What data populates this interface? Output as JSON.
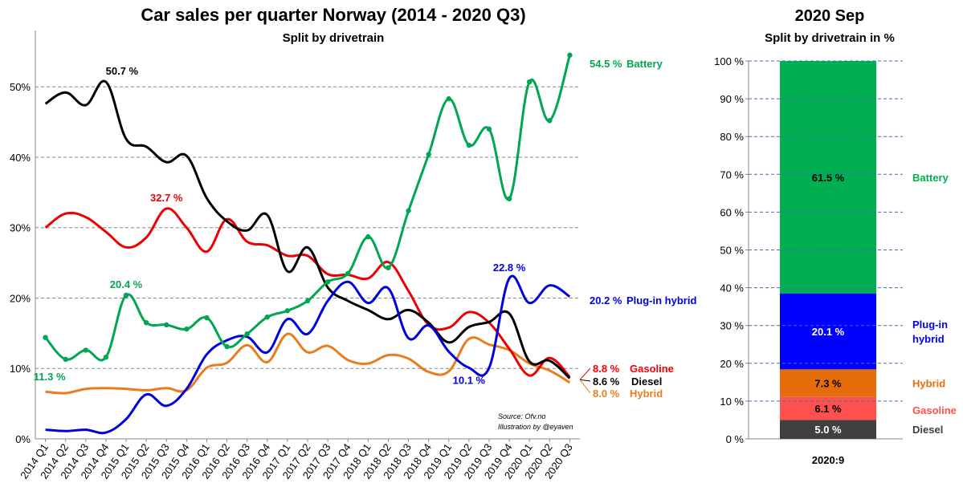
{
  "chart_data": [
    {
      "type": "line",
      "title": "Car sales per quarter Norway (2014 - 2020 Q3)",
      "subtitle": "Split by drivetrain",
      "ylim": [
        0,
        58
      ],
      "yticks": [
        "0%",
        "10%",
        "20%",
        "30%",
        "40%",
        "50%"
      ],
      "grid": "dashed horizontal at 10%, 20%, 30%, 40%, 50%",
      "x": [
        "2014 Q1",
        "2014 Q2",
        "2014 Q3",
        "2014 Q4",
        "2015 Q1",
        "2015 Q2",
        "2015 Q3",
        "2015 Q4",
        "2016 Q1",
        "2016 Q2",
        "2016 Q3",
        "2016 Q4",
        "2017 Q1",
        "2017 Q2",
        "2017 Q3",
        "2017 Q4",
        "2018 Q1",
        "2018 Q2",
        "2018 Q3",
        "2018 Q4",
        "2019 Q1",
        "2019 Q2",
        "2019 Q3",
        "2019 Q4",
        "2020 Q1",
        "2020 Q2",
        "2020 Q3"
      ],
      "series": [
        {
          "name": "Battery",
          "color": "#00a650",
          "values": [
            14.4,
            11.3,
            12.6,
            11.6,
            20.4,
            16.5,
            16.2,
            15.6,
            17.2,
            13.1,
            14.9,
            17.3,
            18.2,
            19.6,
            22.3,
            23.5,
            28.7,
            24.3,
            32.4,
            40.4,
            48.3,
            41.7,
            44.0,
            34.1,
            50.7,
            45.2,
            54.5
          ]
        },
        {
          "name": "Plug-in hybrid",
          "color": "#0000dd",
          "values": [
            1.3,
            1.1,
            1.3,
            0.9,
            2.8,
            6.3,
            4.7,
            7.1,
            12.0,
            14.0,
            14.5,
            12.3,
            17.0,
            14.9,
            19.6,
            22.3,
            19.3,
            21.4,
            14.3,
            16.1,
            12.4,
            10.1,
            10.1,
            22.8,
            19.3,
            21.8,
            20.2
          ]
        },
        {
          "name": "Gasoline",
          "color": "#ee0000",
          "values": [
            30.0,
            32.0,
            31.5,
            29.4,
            27.2,
            28.6,
            32.7,
            30.0,
            26.6,
            31.2,
            28.0,
            27.5,
            26.0,
            26.0,
            23.4,
            23.3,
            22.8,
            25.1,
            21.0,
            16.2,
            15.8,
            18.0,
            16.5,
            12.8,
            9.0,
            11.5,
            8.8
          ]
        },
        {
          "name": "Diesel",
          "color": "#000000",
          "values": [
            47.6,
            49.2,
            47.4,
            50.7,
            42.6,
            41.5,
            39.3,
            40.2,
            34.2,
            30.9,
            29.6,
            31.8,
            23.8,
            27.2,
            21.5,
            19.6,
            18.3,
            17.0,
            18.3,
            16.5,
            13.7,
            15.9,
            16.6,
            17.8,
            11.0,
            11.1,
            8.6
          ]
        },
        {
          "name": "Hybrid",
          "color": "#e87d1e",
          "values": [
            6.7,
            6.5,
            7.1,
            7.2,
            7.1,
            6.9,
            7.2,
            6.9,
            10.1,
            10.8,
            13.3,
            10.9,
            14.9,
            12.3,
            13.2,
            11.2,
            10.7,
            11.9,
            11.4,
            9.5,
            9.6,
            14.2,
            13.4,
            12.6,
            10.7,
            9.7,
            8.0
          ]
        }
      ],
      "annotations": [
        "50.7 %",
        "32.7 %",
        "20.4 %",
        "11.3 %",
        "22.8 %",
        "10.1 %"
      ],
      "end_labels": [
        {
          "value": "54.5 %",
          "name": "Battery"
        },
        {
          "value": "20.2 %",
          "name": "Plug-in hybrid"
        },
        {
          "value": "8.8 %",
          "name": "Gasoline"
        },
        {
          "value": "8.6 %",
          "name": "Diesel"
        },
        {
          "value": "8.0 %",
          "name": "Hybrid"
        }
      ],
      "source": "Source: Ofv.no",
      "credit": "Illustration by @eyaven"
    },
    {
      "type": "bar",
      "stacked": true,
      "title": "2020 Sep",
      "subtitle": "Split by drivetrain in %",
      "categories": [
        "2020:9"
      ],
      "ylim": [
        0,
        100
      ],
      "yticks": [
        "0 %",
        "10 %",
        "20 %",
        "30 %",
        "40 %",
        "50 %",
        "60 %",
        "70 %",
        "80 %",
        "90 %",
        "100 %"
      ],
      "series": [
        {
          "name": "Diesel",
          "value": 5.0,
          "label": "5.0 %",
          "color": "#404040",
          "text_color": "#ffffff",
          "legend_color": "#404040"
        },
        {
          "name": "Gasoline",
          "value": 6.1,
          "label": "6.1 %",
          "color": "#ff5050",
          "text_color": "#000000",
          "legend_color": "#ff5050"
        },
        {
          "name": "Hybrid",
          "value": 7.3,
          "label": "7.3 %",
          "color": "#e46c0a",
          "text_color": "#000000",
          "legend_color": "#e46c0a"
        },
        {
          "name": "Plug-in\nhybrid",
          "value": 20.1,
          "label": "20.1 %",
          "color": "#0000ff",
          "text_color": "#ffffff",
          "legend_color": "#0000ff"
        },
        {
          "name": "Battery",
          "value": 61.5,
          "label": "61.5 %",
          "color": "#00b050",
          "text_color": "#000000",
          "legend_color": "#00b050"
        }
      ]
    }
  ]
}
